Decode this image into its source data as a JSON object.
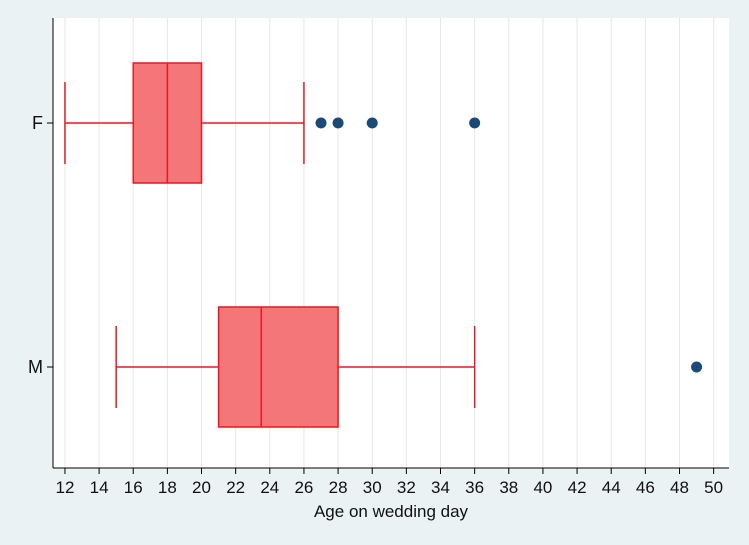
{
  "chart_data": {
    "type": "box",
    "xlabel": "Age on wedding day",
    "ylabel": "",
    "title": "",
    "xlim": [
      11.3,
      50.9
    ],
    "x_ticks": [
      12,
      14,
      16,
      18,
      20,
      22,
      24,
      26,
      28,
      30,
      32,
      34,
      36,
      38,
      40,
      42,
      44,
      46,
      48,
      50
    ],
    "grid": "vertical",
    "orientation": "horizontal",
    "categories": [
      "F",
      "M"
    ],
    "boxes": [
      {
        "category": "F",
        "whisker_low": 12,
        "q1": 16,
        "median": 18,
        "q3": 20,
        "whisker_high": 26,
        "outliers": [
          27,
          28,
          30,
          36
        ]
      },
      {
        "category": "M",
        "whisker_low": 15,
        "q1": 21,
        "median": 23.5,
        "q3": 28,
        "whisker_high": 36,
        "outliers": [
          49
        ]
      }
    ],
    "colors": {
      "background": "#eaf2f3",
      "plot_background": "#ffffff",
      "box_fill": "#f47678",
      "box_stroke": "#e8191f",
      "outlier": "#1a4a78",
      "grid": "#e3e8ea",
      "axis": "#000000"
    }
  }
}
